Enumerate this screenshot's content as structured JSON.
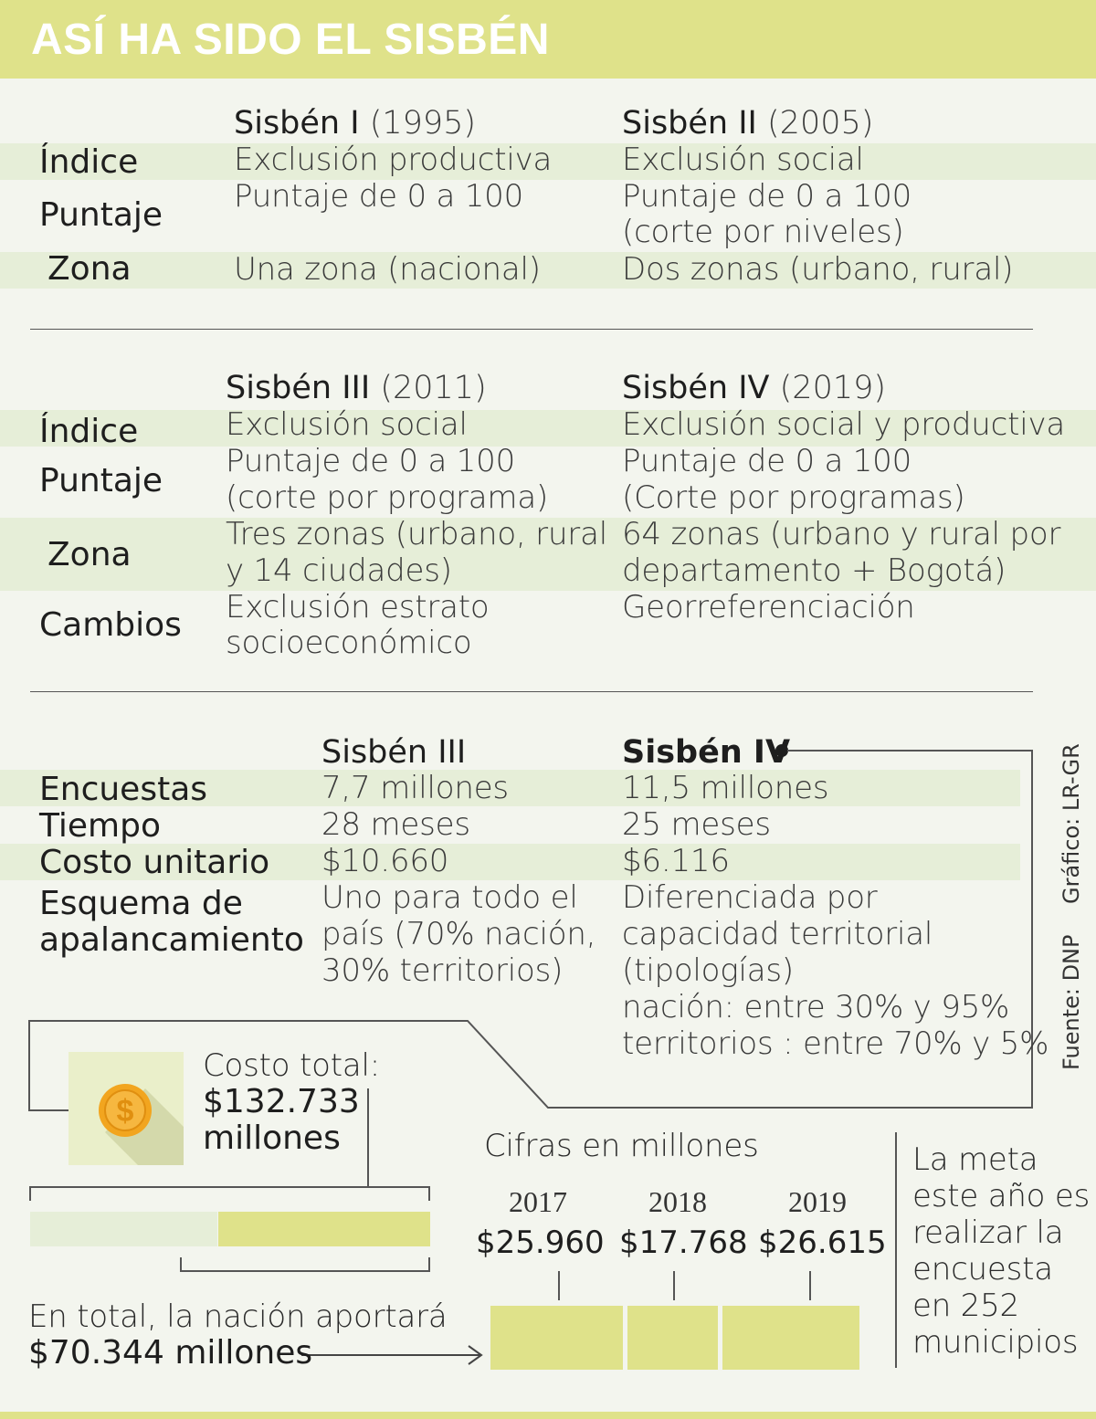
{
  "header": {
    "title": "ASÍ HA SIDO EL SISBÉN"
  },
  "section1": {
    "col1_title": "Sisbén I",
    "col1_year": "(1995)",
    "col2_title": "Sisbén II",
    "col2_year": "(2005)",
    "row_indice": {
      "label": "Índice",
      "v1": "Exclusión productiva",
      "v2": "Exclusión social"
    },
    "row_puntaje": {
      "label": "Puntaje",
      "v1": "Puntaje de 0 a 100",
      "v2_line1": "Puntaje de 0 a 100",
      "v2_line2": "(corte por niveles)"
    },
    "row_zona": {
      "label": "Zona",
      "v1": "Una zona (nacional)",
      "v2": "Dos zonas (urbano, rural)"
    }
  },
  "section2": {
    "col1_title": "Sisbén III",
    "col1_year": "(2011)",
    "col2_title": "Sisbén IV",
    "col2_year": "(2019)",
    "row_indice": {
      "label": "Índice",
      "v1": "Exclusión social",
      "v2": "Exclusión social y productiva"
    },
    "row_puntaje": {
      "label": "Puntaje",
      "v1_line1": "Puntaje de 0 a 100",
      "v1_line2": "(corte por programa)",
      "v2_line1": "Puntaje de 0 a 100",
      "v2_line2": "(Corte por programas)"
    },
    "row_zona": {
      "label": "Zona",
      "v1_line1": "Tres zonas (urbano, rural",
      "v1_line2": "y 14 ciudades)",
      "v2_line1": "64 zonas (urbano y rural por",
      "v2_line2": "departamento + Bogotá)"
    },
    "row_cambios": {
      "label": "Cambios",
      "v1_line1": "Exclusión estrato",
      "v1_line2": "socioeconómico",
      "v2": "Georreferenciación"
    }
  },
  "section3": {
    "col1_title": "Sisbén III",
    "col2_title": "Sisbén IV",
    "row_encuestas": {
      "label": "Encuestas",
      "v1": "7,7 millones",
      "v2": "11,5 millones"
    },
    "row_tiempo": {
      "label": "Tiempo",
      "v1": "28 meses",
      "v2": "25 meses"
    },
    "row_costo": {
      "label": "Costo unitario",
      "v1": "$10.660",
      "v2": "$6.116"
    },
    "row_esquema": {
      "label_line1": "Esquema de",
      "label_line2": "apalancamiento",
      "v1_line1": "Uno para todo el",
      "v1_line2": "país (70% nación,",
      "v1_line3": "30% territorios)",
      "v2_line1": "Diferenciada por",
      "v2_line2": "capacidad territorial",
      "v2_line3": "(tipologías)",
      "v2_line4": "nación: entre 30% y 95%",
      "v2_line5": "territorios : entre 70% y 5%"
    }
  },
  "credits": {
    "grafico": "Gráfico: LR-GR",
    "fuente": "Fuente: DNP"
  },
  "cost": {
    "icon": "dollar-coin-icon",
    "line1": "Costo total:",
    "line2": "$132.733",
    "line3": "millones",
    "nation_line1": "En total, la nación aportará",
    "nation_line2": "$70.344 millones",
    "nation_share": 0.53
  },
  "yearly": {
    "caption": "Cifras en millones",
    "years": [
      {
        "year": "2017",
        "value": "$25.960"
      },
      {
        "year": "2018",
        "value": "$17.768"
      },
      {
        "year": "2019",
        "value": "$26.615"
      }
    ]
  },
  "goal": {
    "line1": "La meta",
    "line2": "este año es",
    "line3": "realizar la",
    "line4": "encuesta",
    "line5": "en 252",
    "line6": "municipios"
  },
  "colors": {
    "accent": "#dfe28a",
    "band": "#e6eed8",
    "background": "#f3f5ee",
    "coin": "#f2a51f"
  }
}
